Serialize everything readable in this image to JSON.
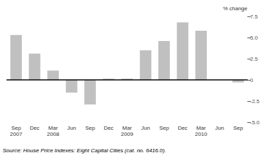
{
  "chart_data": {
    "type": "bar",
    "categories": [
      "Sep\n2007",
      "Dec",
      "Mar\n2008",
      "Jun",
      "Sep",
      "Dec",
      "Mar\n2009",
      "Jun",
      "Sep",
      "Dec",
      "Mar\n2010",
      "Jun",
      "Sep"
    ],
    "values": [
      5.3,
      3.1,
      1.1,
      -1.5,
      -2.9,
      0.15,
      0.15,
      3.5,
      4.6,
      6.8,
      5.8,
      0.0,
      -0.3
    ],
    "color": "#c0c0c0",
    "ylim": [
      -5.0,
      7.5
    ],
    "yticks": [
      {
        "value": -5.0,
        "label": "-5.0"
      },
      -2.5,
      0,
      2.5,
      {
        "value": 5.0,
        "label": "5.0"
      },
      7.5
    ],
    "ylabel": "% change",
    "annotations": [
      "Source: House Price Indexes: Eight Capital Cities (cat. no. 6416.0)."
    ],
    "zero_line_color": "#000000",
    "grid": false
  }
}
